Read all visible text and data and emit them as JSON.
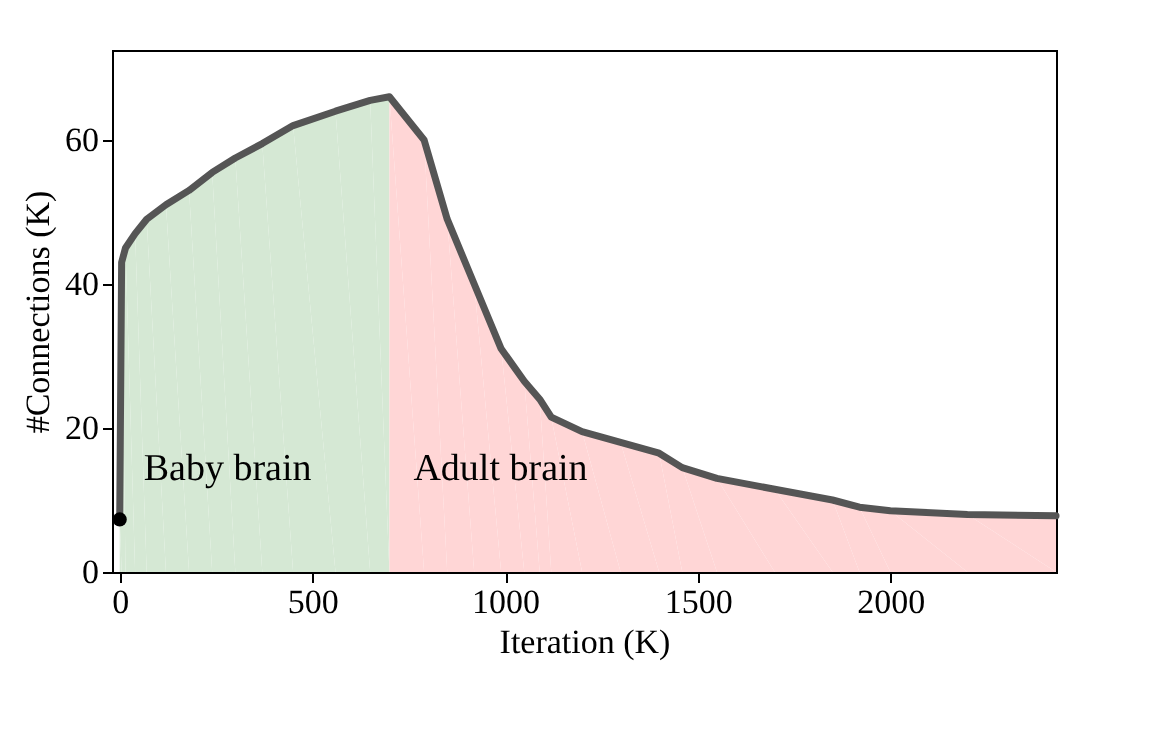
{
  "chart_data": {
    "type": "line",
    "xlabel": "Iteration (K)",
    "ylabel": "#Connections (K)",
    "xlim": [
      -20,
      2430
    ],
    "ylim": [
      0,
      72.5
    ],
    "xticks": [
      0,
      500,
      1000,
      1500,
      2000
    ],
    "yticks": [
      0,
      20,
      40,
      60
    ],
    "grid": false,
    "series": [
      {
        "name": "Baby brain",
        "type": "area",
        "color": "#d5e8d4",
        "x": [
          0,
          5,
          15,
          40,
          70,
          120,
          180,
          240,
          300,
          370,
          450,
          560,
          650,
          700
        ],
        "values": [
          7.3,
          43,
          45,
          47,
          49,
          51,
          53,
          55.5,
          57.5,
          59.5,
          62,
          64,
          65.5,
          66
        ]
      },
      {
        "name": "Adult brain",
        "type": "area",
        "color": "#ffd6d6",
        "x": [
          700,
          790,
          850,
          920,
          990,
          1050,
          1090,
          1120,
          1200,
          1300,
          1400,
          1460,
          1550,
          1700,
          1850,
          1920,
          2000,
          2200,
          2430
        ],
        "values": [
          66,
          60,
          49,
          40,
          31,
          26.5,
          24,
          21.5,
          19.5,
          18,
          16.5,
          14.5,
          13,
          11.5,
          10,
          9,
          8.5,
          8,
          7.8
        ]
      },
      {
        "color": "#555555",
        "line_style": "solid",
        "x": [
          0,
          5,
          15,
          40,
          70,
          120,
          180,
          240,
          300,
          370,
          450,
          560,
          650,
          700,
          790,
          850,
          920,
          990,
          1050,
          1090,
          1120,
          1200,
          1300,
          1400,
          1460,
          1550,
          1700,
          1850,
          1920,
          2000,
          2200,
          2430
        ],
        "values": [
          7.3,
          43,
          45,
          47,
          49,
          51,
          53,
          55.5,
          57.5,
          59.5,
          62,
          64,
          65.5,
          66,
          60,
          49,
          40,
          31,
          26.5,
          24,
          21.5,
          19.5,
          18,
          16.5,
          14.5,
          13,
          11.5,
          10,
          9,
          8.5,
          8,
          7.8
        ]
      },
      {
        "type": "scatter",
        "color": "#000000",
        "marker": "circle",
        "x": [
          0
        ],
        "values": [
          7.3
        ]
      }
    ]
  }
}
